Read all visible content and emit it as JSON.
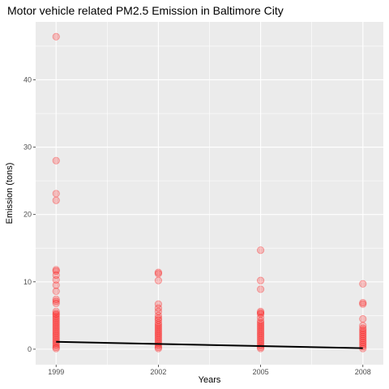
{
  "chart_data": {
    "type": "scatter",
    "title": "Motor vehicle related PM2.5 Emission in Baltimore City",
    "xlabel": "Years",
    "ylabel": "Emission (tons)",
    "x_ticks": [
      1999,
      2002,
      2005,
      2008
    ],
    "y_ticks": [
      0,
      10,
      20,
      30,
      40
    ],
    "xlim": [
      1998.4,
      2008.6
    ],
    "ylim": [
      -2.3,
      48.6
    ],
    "grid": true,
    "legend": "none",
    "colors": {
      "panel_bg": "#ebebeb",
      "grid": "#ffffff",
      "points": "#ff0000",
      "trend": "#000000",
      "tick_label": "#4d4d4d"
    },
    "series": [
      {
        "year": 1999,
        "emissions": [
          46.4,
          28.0,
          23.1,
          22.1,
          11.8,
          11.6,
          11.0,
          10.3,
          9.5,
          8.6,
          7.4,
          7.1,
          6.8,
          5.6,
          5.3,
          5.1,
          4.8,
          4.5,
          4.2,
          3.9,
          3.6,
          3.3,
          3.0,
          2.7,
          2.4,
          2.1,
          1.8,
          1.5,
          1.2,
          0.9,
          0.6,
          0.3,
          0.1
        ]
      },
      {
        "year": 2002,
        "emissions": [
          11.4,
          11.2,
          10.2,
          6.7,
          6.1,
          5.6,
          5.0,
          4.6,
          4.3,
          3.9,
          3.6,
          3.3,
          3.0,
          2.7,
          2.4,
          2.1,
          1.8,
          1.5,
          1.2,
          0.9,
          0.6,
          0.3,
          0.1
        ]
      },
      {
        "year": 2005,
        "emissions": [
          14.7,
          10.2,
          8.9,
          5.6,
          5.4,
          5.2,
          4.7,
          4.2,
          3.9,
          3.6,
          3.3,
          3.0,
          2.7,
          2.4,
          2.1,
          1.8,
          1.5,
          1.2,
          0.9,
          0.6,
          0.3,
          0.1
        ]
      },
      {
        "year": 2008,
        "emissions": [
          9.7,
          6.9,
          6.7,
          4.5,
          3.5,
          3.1,
          2.8,
          2.5,
          2.2,
          1.9,
          1.6,
          1.3,
          1.0,
          0.7,
          0.4,
          0.1
        ]
      }
    ],
    "trend_line": {
      "x": [
        1999,
        2008
      ],
      "y": [
        1.1,
        0.15
      ]
    }
  }
}
